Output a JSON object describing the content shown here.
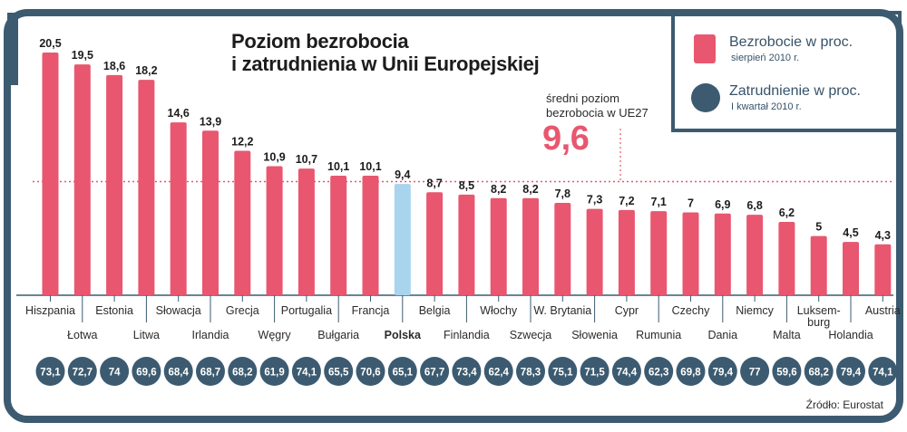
{
  "title_line1": "Poziom bezrobocia",
  "title_line2": "i zatrudnienia w Unii Europejskiej",
  "legend": {
    "unemployment_label": "Bezrobocie w proc.",
    "unemployment_note": "sierpień 2010 r.",
    "employment_label": "Zatrudnienie w proc.",
    "employment_note": "I kwartał 2010 r."
  },
  "average": {
    "label_line1": "średni poziom",
    "label_line2": "bezrobocia w UE27",
    "value_text": "9,6",
    "value": 9.6
  },
  "source": "Źródło: Eurostat",
  "colors": {
    "bar": "#e8576f",
    "highlight_bar": "#a8d4ee",
    "circle": "#3c5b70",
    "frame": "#3c5b70",
    "average_line": "#e8576f"
  },
  "chart_data": {
    "type": "bar",
    "categories": [
      {
        "label": "Hiszpania",
        "highlight": false,
        "unemployment": 20.5,
        "unemployment_text": "20,5",
        "employment": 73.1,
        "employment_text": "73,1",
        "label_row": "upper"
      },
      {
        "label": "Łotwa",
        "highlight": false,
        "unemployment": 19.5,
        "unemployment_text": "19,5",
        "employment": 72.7,
        "employment_text": "72,7",
        "label_row": "lower"
      },
      {
        "label": "Estonia",
        "highlight": false,
        "unemployment": 18.6,
        "unemployment_text": "18,6",
        "employment": 74,
        "employment_text": "74",
        "label_row": "upper"
      },
      {
        "label": "Litwa",
        "highlight": false,
        "unemployment": 18.2,
        "unemployment_text": "18,2",
        "employment": 69.6,
        "employment_text": "69,6",
        "label_row": "lower"
      },
      {
        "label": "Słowacja",
        "highlight": false,
        "unemployment": 14.6,
        "unemployment_text": "14,6",
        "employment": 68.4,
        "employment_text": "68,4",
        "label_row": "upper"
      },
      {
        "label": "Irlandia",
        "highlight": false,
        "unemployment": 13.9,
        "unemployment_text": "13,9",
        "employment": 68.7,
        "employment_text": "68,7",
        "label_row": "lower"
      },
      {
        "label": "Grecja",
        "highlight": false,
        "unemployment": 12.2,
        "unemployment_text": "12,2",
        "employment": 68.2,
        "employment_text": "68,2",
        "label_row": "upper"
      },
      {
        "label": "Węgry",
        "highlight": false,
        "unemployment": 10.9,
        "unemployment_text": "10,9",
        "employment": 61.9,
        "employment_text": "61,9",
        "label_row": "lower"
      },
      {
        "label": "Portugalia",
        "highlight": false,
        "unemployment": 10.7,
        "unemployment_text": "10,7",
        "employment": 74.1,
        "employment_text": "74,1",
        "label_row": "upper"
      },
      {
        "label": "Bułgaria",
        "highlight": false,
        "unemployment": 10.1,
        "unemployment_text": "10,1",
        "employment": 65.5,
        "employment_text": "65,5",
        "label_row": "lower"
      },
      {
        "label": "Francja",
        "highlight": false,
        "unemployment": 10.1,
        "unemployment_text": "10,1",
        "employment": 70.6,
        "employment_text": "70,6",
        "label_row": "upper"
      },
      {
        "label": "Polska",
        "highlight": true,
        "unemployment": 9.4,
        "unemployment_text": "9,4",
        "employment": 65.1,
        "employment_text": "65,1",
        "label_row": "lower"
      },
      {
        "label": "Belgia",
        "highlight": false,
        "unemployment": 8.7,
        "unemployment_text": "8,7",
        "employment": 67.7,
        "employment_text": "67,7",
        "label_row": "upper"
      },
      {
        "label": "Finlandia",
        "highlight": false,
        "unemployment": 8.5,
        "unemployment_text": "8,5",
        "employment": 73.4,
        "employment_text": "73,4",
        "label_row": "lower"
      },
      {
        "label": "Włochy",
        "highlight": false,
        "unemployment": 8.2,
        "unemployment_text": "8,2",
        "employment": 62.4,
        "employment_text": "62,4",
        "label_row": "upper"
      },
      {
        "label": "Szwecja",
        "highlight": false,
        "unemployment": 8.2,
        "unemployment_text": "8,2",
        "employment": 78.3,
        "employment_text": "78,3",
        "label_row": "lower"
      },
      {
        "label": "W. Brytania",
        "highlight": false,
        "unemployment": 7.8,
        "unemployment_text": "7,8",
        "employment": 75.1,
        "employment_text": "75,1",
        "label_row": "upper"
      },
      {
        "label": "Słowenia",
        "highlight": false,
        "unemployment": 7.3,
        "unemployment_text": "7,3",
        "employment": 71.5,
        "employment_text": "71,5",
        "label_row": "lower"
      },
      {
        "label": "Cypr",
        "highlight": false,
        "unemployment": 7.2,
        "unemployment_text": "7,2",
        "employment": 74.4,
        "employment_text": "74,4",
        "label_row": "upper"
      },
      {
        "label": "Rumunia",
        "highlight": false,
        "unemployment": 7.1,
        "unemployment_text": "7,1",
        "employment": 62.3,
        "employment_text": "62,3",
        "label_row": "lower"
      },
      {
        "label": "Czechy",
        "highlight": false,
        "unemployment": 7,
        "unemployment_text": "7",
        "employment": 69.8,
        "employment_text": "69,8",
        "label_row": "upper"
      },
      {
        "label": "Dania",
        "highlight": false,
        "unemployment": 6.9,
        "unemployment_text": "6,9",
        "employment": 79.4,
        "employment_text": "79,4",
        "label_row": "lower"
      },
      {
        "label": "Niemcy",
        "highlight": false,
        "unemployment": 6.8,
        "unemployment_text": "6,8",
        "employment": 77,
        "employment_text": "77",
        "label_row": "upper"
      },
      {
        "label": "Malta",
        "highlight": false,
        "unemployment": 6.2,
        "unemployment_text": "6,2",
        "employment": 59.6,
        "employment_text": "59,6",
        "label_row": "lower"
      },
      {
        "label": "Luksem-\nburg",
        "highlight": false,
        "unemployment": 5,
        "unemployment_text": "5",
        "employment": 68.2,
        "employment_text": "68,2",
        "label_row": "upper"
      },
      {
        "label": "Holandia",
        "highlight": false,
        "unemployment": 4.5,
        "unemployment_text": "4,5",
        "employment": 79.4,
        "employment_text": "79,4",
        "label_row": "lower"
      },
      {
        "label": "Austria",
        "highlight": false,
        "unemployment": 4.3,
        "unemployment_text": "4,3",
        "employment": 74.1,
        "employment_text": "74,1",
        "label_row": "upper"
      }
    ],
    "series": [
      {
        "name": "Bezrobocie w proc.",
        "key": "unemployment",
        "mark": "bar"
      },
      {
        "name": "Zatrudnienie w proc.",
        "key": "employment",
        "mark": "circle"
      }
    ],
    "ylim": [
      0,
      20.5
    ],
    "reference_line": 9.6
  }
}
